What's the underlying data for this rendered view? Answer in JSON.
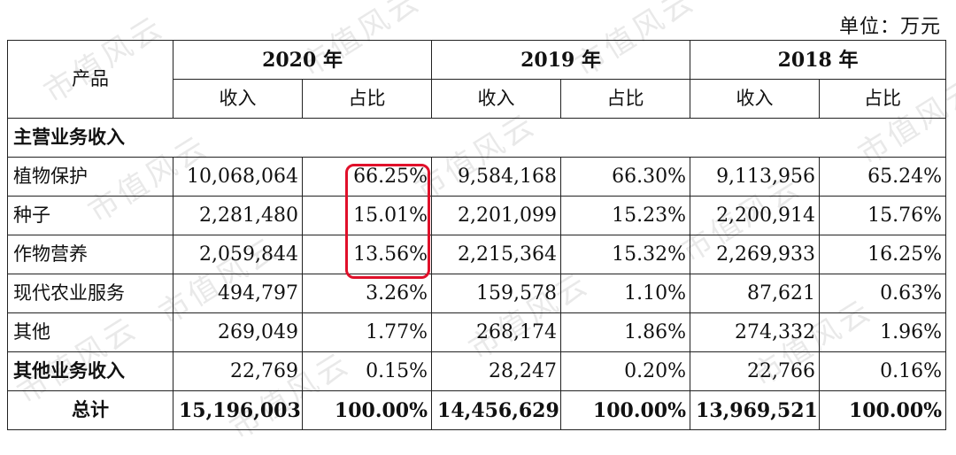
{
  "unit_label": "单位：万元",
  "header": {
    "product": "产品",
    "years": [
      "2020 年",
      "2019 年",
      "2018 年"
    ],
    "revenue": "收入",
    "share": "占比"
  },
  "section_main": "主营业务收入",
  "rows": [
    {
      "name": "植物保护",
      "v2020": "10,068,064",
      "p2020": "66.25%",
      "v2019": "9,584,168",
      "p2019": "66.30%",
      "v2018": "9,113,956",
      "p2018": "65.24%"
    },
    {
      "name": "种子",
      "v2020": "2,281,480",
      "p2020": "15.01%",
      "v2019": "2,201,099",
      "p2019": "15.23%",
      "v2018": "2,200,914",
      "p2018": "15.76%"
    },
    {
      "name": "作物营养",
      "v2020": "2,059,844",
      "p2020": "13.56%",
      "v2019": "2,215,364",
      "p2019": "15.32%",
      "v2018": "2,269,933",
      "p2018": "16.25%"
    },
    {
      "name": "现代农业服务",
      "v2020": "494,797",
      "p2020": "3.26%",
      "v2019": "159,578",
      "p2019": "1.10%",
      "v2018": "87,621",
      "p2018": "0.63%"
    },
    {
      "name": "其他",
      "v2020": "269,049",
      "p2020": "1.77%",
      "v2019": "268,174",
      "p2019": "1.86%",
      "v2018": "274,332",
      "p2018": "1.96%"
    }
  ],
  "other_row": {
    "name": "其他业务收入",
    "v2020": "22,769",
    "p2020": "0.15%",
    "v2019": "28,247",
    "p2019": "0.20%",
    "v2018": "22,766",
    "p2018": "0.16%"
  },
  "total_row": {
    "name": "总计",
    "v2020": "15,196,003",
    "p2020": "100.00%",
    "v2019": "14,456,629",
    "p2019": "100.00%",
    "v2018": "13,969,521",
    "p2018": "100.00%"
  },
  "watermark_text": "市值风云",
  "highlight_color": "#e0102a"
}
